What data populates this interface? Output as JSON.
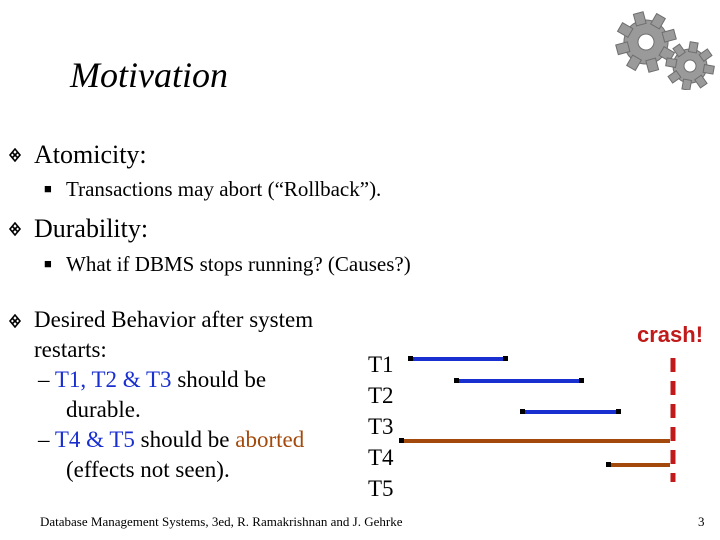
{
  "slide": {
    "title": "Motivation",
    "bullets": [
      {
        "text": "Atomicity:",
        "sub": "Transactions may abort (“Rollback”)."
      },
      {
        "text": "Durability:",
        "sub": "What if DBMS stops running?  (Causes?)"
      }
    ],
    "desired": {
      "line1": "Desired Behavior after system",
      "line2": "restarts:",
      "dash1_prefix": "– ",
      "dash1_colored": "T1, T2 & T3",
      "dash1_rest": " should be",
      "dash1_line2": "durable.",
      "dash2_prefix": "– ",
      "dash2_colored": "T4 & T5",
      "dash2_mid": " should be ",
      "dash2_colored2": "aborted",
      "dash2_line2": "(effects not seen)."
    },
    "transactions": [
      "T1",
      "T2",
      "T3",
      "T4",
      "T5"
    ],
    "crash_label": "crash!",
    "footer": "Database Management Systems, 3ed, R. Ramakrishnan and J. Gehrke",
    "page_number": "3"
  },
  "colors": {
    "committed": "#1a2fd0",
    "aborted": "#a3490b",
    "crash": "#c01a1a"
  },
  "icons": [
    "gears-icon",
    "bullet-diamond-icon",
    "bullet-square-icon"
  ]
}
